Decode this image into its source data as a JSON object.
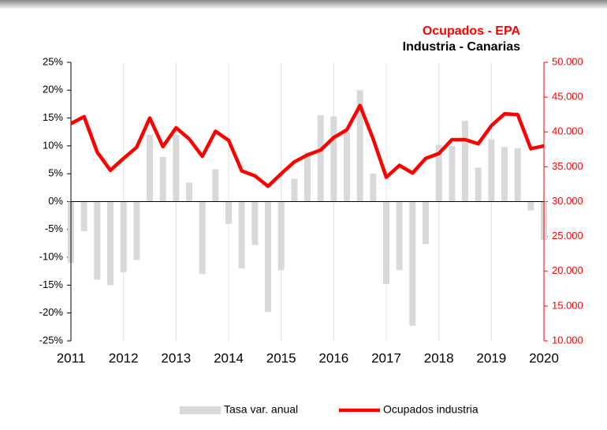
{
  "chart_data": {
    "type": "bar-line",
    "title": "Ocupados - EPA",
    "subtitle": "Industria - Canarias",
    "x": [
      2011,
      2011.25,
      2011.5,
      2011.75,
      2012,
      2012.25,
      2012.5,
      2012.75,
      2013,
      2013.25,
      2013.5,
      2013.75,
      2014,
      2014.25,
      2014.5,
      2014.75,
      2015,
      2015.25,
      2015.5,
      2015.75,
      2016,
      2016.25,
      2016.5,
      2016.75,
      2017,
      2017.25,
      2017.5,
      2017.75,
      2018,
      2018.25,
      2018.5,
      2018.75,
      2019,
      2019.25,
      2019.5,
      2019.75,
      2020
    ],
    "series": [
      {
        "name": "Tasa var. anual",
        "color": "#d9d9d9",
        "kind": "bar",
        "values": [
          -11,
          -5.3,
          -14,
          -15,
          -12.7,
          -10.5,
          12,
          8,
          12,
          3.4,
          -13,
          5.8,
          -4,
          -12,
          -7.8,
          -19.8,
          -12.3,
          4.1,
          8.8,
          15.5,
          15.3,
          12.5,
          20,
          5,
          -14.8,
          -12.3,
          -22.3,
          -7.6,
          10.2,
          10,
          14.5,
          6.1,
          11.2,
          9.8,
          9.6,
          -1.6,
          -6.9
        ]
      },
      {
        "name": "Ocupados industria",
        "color": "#ff0000",
        "kind": "line",
        "axis": "y2",
        "values": [
          41200,
          42200,
          37100,
          34500,
          36200,
          37800,
          42000,
          37900,
          40600,
          39000,
          36500,
          40100,
          38800,
          34400,
          33700,
          32200,
          34000,
          35700,
          36700,
          37400,
          39200,
          40300,
          43800,
          39000,
          33500,
          35200,
          34100,
          36200,
          36900,
          38900,
          38900,
          38300,
          40900,
          42600,
          42500,
          37600,
          38000
        ]
      }
    ],
    "xlim": [
      2011,
      2020
    ],
    "xticks": [
      2011,
      2012,
      2013,
      2014,
      2015,
      2016,
      2017,
      2018,
      2019,
      2020
    ],
    "ylim": [
      -25,
      25
    ],
    "yticks": [
      {
        "value": -25,
        "label": "-25%"
      },
      {
        "value": -20,
        "label": "-20%"
      },
      {
        "value": -15,
        "label": "-15%"
      },
      {
        "value": -10,
        "label": "-10%"
      },
      {
        "value": -5,
        "label": "-5%"
      },
      {
        "value": 0,
        "label": "0%"
      },
      {
        "value": 5,
        "label": "5%"
      },
      {
        "value": 10,
        "label": "10%"
      },
      {
        "value": 15,
        "label": "15%"
      },
      {
        "value": 20,
        "label": "20%"
      },
      {
        "value": 25,
        "label": "25%"
      }
    ],
    "y2lim": [
      10000,
      50000
    ],
    "y2ticks": [
      {
        "value": 10000,
        "label": "10.000"
      },
      {
        "value": 15000,
        "label": "15.000"
      },
      {
        "value": 20000,
        "label": "20.000"
      },
      {
        "value": 25000,
        "label": "25.000"
      },
      {
        "value": 30000,
        "label": "30.000"
      },
      {
        "value": 35000,
        "label": "35.000"
      },
      {
        "value": 40000,
        "label": "40.000"
      },
      {
        "value": 45000,
        "label": "45.000"
      },
      {
        "value": 50000,
        "label": "50.000"
      }
    ],
    "grid": true
  }
}
